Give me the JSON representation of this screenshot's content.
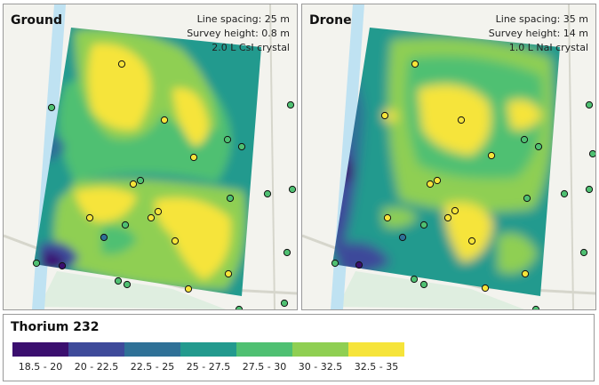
{
  "panels": [
    {
      "title": "Ground",
      "info": [
        "Line spacing: 25 m",
        "Survey height: 0.8 m",
        "2.0 L CsI crystal"
      ]
    },
    {
      "title": "Drone",
      "info": [
        "Line spacing: 35 m",
        "Survey height: 14 m",
        "1.0 L NaI crystal"
      ]
    }
  ],
  "legend": {
    "title": "Thorium 232",
    "classes": [
      {
        "label": "18.5 - 20",
        "color": "#3b0f6f"
      },
      {
        "label": "20 - 22.5",
        "color": "#3e4a9a"
      },
      {
        "label": "22.5 - 25",
        "color": "#2f7197"
      },
      {
        "label": "25 - 27.5",
        "color": "#239a8e"
      },
      {
        "label": "27.5 - 30",
        "color": "#4fc072"
      },
      {
        "label": "30 - 32.5",
        "color": "#8fcf52"
      },
      {
        "label": "32.5 - 35",
        "color": "#f6e43a"
      }
    ]
  },
  "map_colors": {
    "background": "#f3f3ee",
    "river": "#bfe2f2",
    "roads": "#d6d6cc",
    "fields": "#dfeee0",
    "sample_outline": "#111111"
  }
}
